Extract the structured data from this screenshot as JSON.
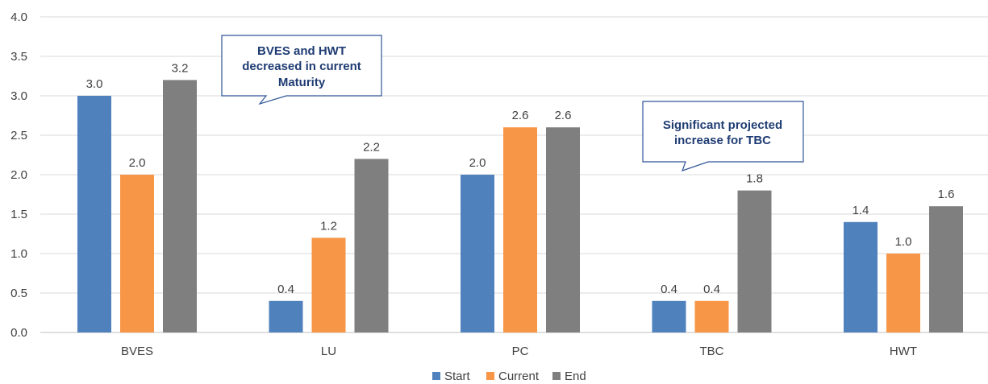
{
  "chart_data": {
    "type": "bar",
    "categories": [
      "BVES",
      "LU",
      "PC",
      "TBC",
      "HWT"
    ],
    "series": [
      {
        "name": "Start",
        "color": "#4f81bd",
        "values": [
          3.0,
          0.4,
          2.0,
          0.4,
          1.4
        ]
      },
      {
        "name": "Current",
        "color": "#f79646",
        "values": [
          2.0,
          1.2,
          2.6,
          0.4,
          1.0
        ]
      },
      {
        "name": "End",
        "color": "#7f7f7f",
        "values": [
          3.2,
          2.2,
          2.6,
          1.8,
          1.6
        ]
      }
    ],
    "ylim": [
      0,
      4.0
    ],
    "yticks": [
      "0.0",
      "0.5",
      "1.0",
      "1.5",
      "2.0",
      "2.5",
      "3.0",
      "3.5",
      "4.0"
    ],
    "grid": true,
    "legend": "bottom-center",
    "annotations": [
      {
        "lines": [
          "BVES and HWT",
          "decreased in current",
          "Maturity"
        ]
      },
      {
        "lines": [
          "Significant projected",
          "increase for TBC"
        ]
      }
    ]
  }
}
